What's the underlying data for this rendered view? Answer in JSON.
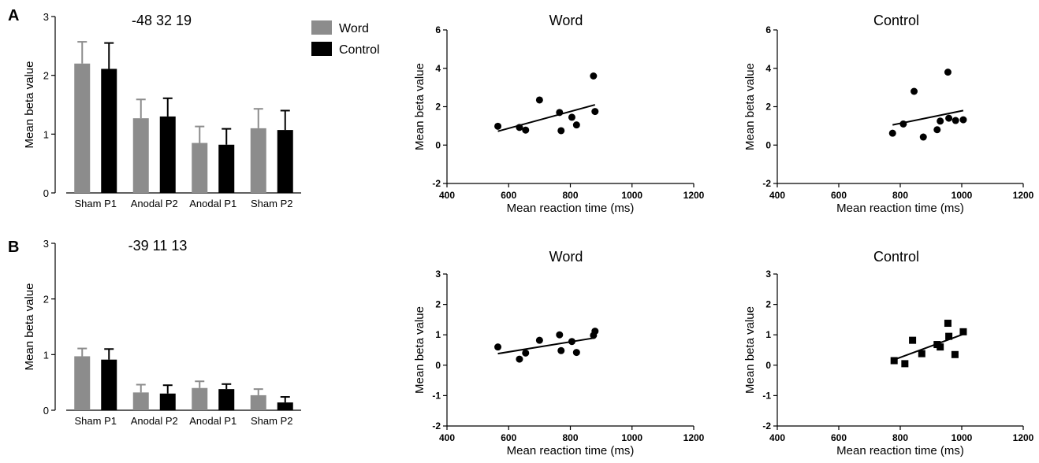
{
  "panel_labels": [
    "A",
    "B"
  ],
  "legend": {
    "items": [
      {
        "label": "Word",
        "color": "#8c8c8c"
      },
      {
        "label": "Control",
        "color": "#000000"
      }
    ]
  },
  "colors": {
    "word": "#8c8c8c",
    "control": "#000000",
    "axis": "#000000"
  },
  "chart_data": [
    {
      "id": "A-bar",
      "type": "bar",
      "annotation": "-48 32 19",
      "ylabel": "Mean beta value",
      "categories": [
        "Sham P1",
        "Anodal P2",
        "Anodal P1",
        "Sham P2"
      ],
      "series": [
        {
          "name": "Word",
          "values": [
            2.2,
            1.27,
            0.85,
            1.1
          ],
          "errors": [
            0.37,
            0.32,
            0.28,
            0.33
          ]
        },
        {
          "name": "Control",
          "values": [
            2.11,
            1.3,
            0.82,
            1.07
          ],
          "errors": [
            0.44,
            0.31,
            0.27,
            0.33
          ]
        }
      ],
      "ylim": [
        0,
        3
      ],
      "yticks": [
        0,
        1,
        2,
        3
      ],
      "legend": "top-right"
    },
    {
      "id": "A-word",
      "type": "scatter",
      "title": "Word",
      "xlabel": "Mean reaction time (ms)",
      "ylabel": "Mean beta value",
      "marker": "circle",
      "points": [
        [
          565,
          0.98
        ],
        [
          635,
          0.92
        ],
        [
          655,
          0.78
        ],
        [
          700,
          2.35
        ],
        [
          765,
          1.7
        ],
        [
          770,
          0.75
        ],
        [
          805,
          1.45
        ],
        [
          820,
          1.05
        ],
        [
          875,
          3.6
        ],
        [
          880,
          1.75
        ]
      ],
      "fit": [
        [
          565,
          0.72
        ],
        [
          880,
          2.1
        ]
      ],
      "xlim": [
        400,
        1200
      ],
      "xticks": [
        400,
        600,
        800,
        1000,
        1200
      ],
      "ylim": [
        -2,
        6
      ],
      "yticks": [
        -2,
        0,
        2,
        4,
        6
      ]
    },
    {
      "id": "A-control",
      "type": "scatter",
      "title": "Control",
      "xlabel": "Mean reaction time (ms)",
      "ylabel": "Mean beta value",
      "marker": "circle",
      "points": [
        [
          775,
          0.62
        ],
        [
          810,
          1.1
        ],
        [
          845,
          2.8
        ],
        [
          875,
          0.42
        ],
        [
          920,
          0.8
        ],
        [
          930,
          1.25
        ],
        [
          955,
          3.8
        ],
        [
          958,
          1.4
        ],
        [
          980,
          1.28
        ],
        [
          1005,
          1.32
        ]
      ],
      "fit": [
        [
          775,
          1.05
        ],
        [
          1005,
          1.8
        ]
      ],
      "xlim": [
        400,
        1200
      ],
      "xticks": [
        400,
        600,
        800,
        1000,
        1200
      ],
      "ylim": [
        -2,
        6
      ],
      "yticks": [
        -2,
        0,
        2,
        4,
        6
      ]
    },
    {
      "id": "B-bar",
      "type": "bar",
      "annotation": "-39 11 13",
      "ylabel": "Mean beta value",
      "categories": [
        "Sham P1",
        "Anodal P2",
        "Anodal P1",
        "Sham P2"
      ],
      "series": [
        {
          "name": "Word",
          "values": [
            0.97,
            0.32,
            0.4,
            0.27
          ],
          "errors": [
            0.14,
            0.14,
            0.12,
            0.11
          ]
        },
        {
          "name": "Control",
          "values": [
            0.91,
            0.3,
            0.38,
            0.14
          ],
          "errors": [
            0.19,
            0.15,
            0.09,
            0.1
          ]
        }
      ],
      "ylim": [
        0,
        3
      ],
      "yticks": [
        0,
        1,
        2,
        3
      ]
    },
    {
      "id": "B-word",
      "type": "scatter",
      "title": "Word",
      "xlabel": "Mean reaction time (ms)",
      "ylabel": "Mean beta value",
      "marker": "circle",
      "points": [
        [
          565,
          0.6
        ],
        [
          635,
          0.2
        ],
        [
          655,
          0.4
        ],
        [
          700,
          0.82
        ],
        [
          765,
          1.0
        ],
        [
          770,
          0.48
        ],
        [
          805,
          0.78
        ],
        [
          820,
          0.42
        ],
        [
          875,
          0.98
        ],
        [
          880,
          1.12
        ]
      ],
      "fit": [
        [
          565,
          0.38
        ],
        [
          880,
          0.9
        ]
      ],
      "xlim": [
        400,
        1200
      ],
      "xticks": [
        400,
        600,
        800,
        1000,
        1200
      ],
      "ylim": [
        -2,
        3
      ],
      "yticks": [
        -2,
        -1,
        0,
        1,
        2,
        3
      ]
    },
    {
      "id": "B-control",
      "type": "scatter",
      "title": "Control",
      "xlabel": "Mean reaction time (ms)",
      "ylabel": "Mean beta value",
      "marker": "square",
      "points": [
        [
          780,
          0.15
        ],
        [
          815,
          0.05
        ],
        [
          840,
          0.82
        ],
        [
          870,
          0.38
        ],
        [
          920,
          0.68
        ],
        [
          930,
          0.6
        ],
        [
          955,
          1.38
        ],
        [
          958,
          0.95
        ],
        [
          978,
          0.35
        ],
        [
          1005,
          1.1
        ]
      ],
      "fit": [
        [
          780,
          0.18
        ],
        [
          1005,
          1.02
        ]
      ],
      "xlim": [
        400,
        1200
      ],
      "xticks": [
        400,
        600,
        800,
        1000,
        1200
      ],
      "ylim": [
        -2,
        3
      ],
      "yticks": [
        -2,
        -1,
        0,
        1,
        2,
        3
      ]
    }
  ]
}
